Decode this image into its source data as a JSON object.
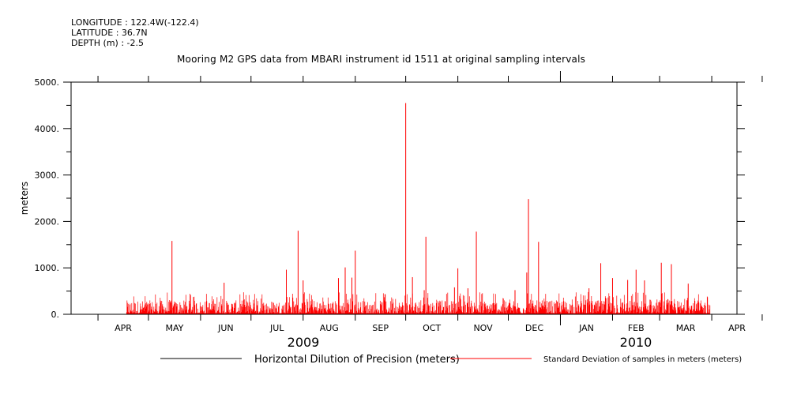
{
  "header": {
    "longitude": "LONGITUDE : 122.4W(-122.4)",
    "latitude": "LATITUDE : 36.7N",
    "depth": "DEPTH (m) : -2.5"
  },
  "chart_data": {
    "type": "line",
    "title": "Mooring M2 GPS data from MBARI instrument id 1511 at original sampling intervals",
    "ylabel": "meters",
    "xlabel": "",
    "ylim": [
      0,
      5000
    ],
    "yticks": [
      0,
      1000,
      2000,
      3000,
      4000,
      5000
    ],
    "ytick_labels": [
      "0.",
      "1000.",
      "2000.",
      "3000.",
      "4000.",
      "5000."
    ],
    "xlim": [
      "2009-03-16",
      "2010-04-16"
    ],
    "month_labels": [
      "APR",
      "MAY",
      "JUN",
      "JUL",
      "AUG",
      "SEP",
      "OCT",
      "NOV",
      "DEC",
      "JAN",
      "FEB",
      "MAR",
      "APR"
    ],
    "year_labels": [
      "2009",
      "2010"
    ],
    "data_start": "2009-04-18",
    "data_end": "2010-03-31",
    "legend_position": "bottom",
    "colors": {
      "std": "#ff0000",
      "hdop": "#000000"
    },
    "series": [
      {
        "name": "Horizontal Dilution of Precision (meters)",
        "color": "#000000",
        "points": []
      },
      {
        "name": "Standard Deviation of samples in meters (meters)",
        "color": "#ff0000",
        "baseline_max": 300,
        "spikes": [
          {
            "date": "2009-05-15",
            "value": 1580
          },
          {
            "date": "2009-06-15",
            "value": 680
          },
          {
            "date": "2009-07-22",
            "value": 960
          },
          {
            "date": "2009-07-29",
            "value": 1800
          },
          {
            "date": "2009-08-01",
            "value": 730
          },
          {
            "date": "2009-08-22",
            "value": 780
          },
          {
            "date": "2009-08-26",
            "value": 1010
          },
          {
            "date": "2009-08-30",
            "value": 790
          },
          {
            "date": "2009-09-01",
            "value": 1370
          },
          {
            "date": "2009-10-01",
            "value": 4550
          },
          {
            "date": "2009-10-05",
            "value": 800
          },
          {
            "date": "2009-10-12",
            "value": 520
          },
          {
            "date": "2009-10-13",
            "value": 1670
          },
          {
            "date": "2009-10-30",
            "value": 580
          },
          {
            "date": "2009-11-01",
            "value": 990
          },
          {
            "date": "2009-11-07",
            "value": 560
          },
          {
            "date": "2009-11-12",
            "value": 1780
          },
          {
            "date": "2009-12-05",
            "value": 520
          },
          {
            "date": "2009-12-12",
            "value": 900
          },
          {
            "date": "2009-12-13",
            "value": 2480
          },
          {
            "date": "2009-12-19",
            "value": 1560
          },
          {
            "date": "2010-01-18",
            "value": 560
          },
          {
            "date": "2010-01-25",
            "value": 1100
          },
          {
            "date": "2010-02-01",
            "value": 780
          },
          {
            "date": "2010-02-10",
            "value": 740
          },
          {
            "date": "2010-02-15",
            "value": 960
          },
          {
            "date": "2010-02-20",
            "value": 730
          },
          {
            "date": "2010-03-02",
            "value": 1110
          },
          {
            "date": "2010-03-08",
            "value": 1080
          },
          {
            "date": "2010-03-18",
            "value": 660
          }
        ]
      }
    ]
  }
}
